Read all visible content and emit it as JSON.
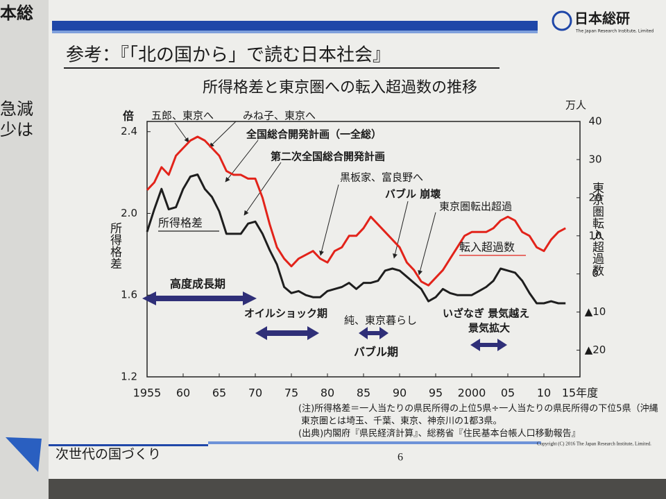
{
  "header": {
    "logo": "日本総研",
    "logo_sub": "The Japan Research Institute, Limited",
    "edge_fragments": [
      "本総",
      "急減",
      "少は"
    ]
  },
  "slide_title": "参考：『「北の国から」で読む日本社会』",
  "chart_data": {
    "type": "line",
    "title": "所得格差と東京圏への転入超過数の推移",
    "y_unit": "倍",
    "y_label": "所得格差",
    "y2_unit": "万人",
    "y2_label": "東京圏転入超過数",
    "x": [
      1955,
      1956,
      1957,
      1958,
      1959,
      1960,
      1961,
      1962,
      1963,
      1964,
      1965,
      1966,
      1967,
      1968,
      1969,
      1970,
      1971,
      1972,
      1973,
      1974,
      1975,
      1976,
      1977,
      1978,
      1979,
      1980,
      1981,
      1982,
      1983,
      1984,
      1985,
      1986,
      1987,
      1988,
      1989,
      1990,
      1991,
      1992,
      1993,
      1994,
      1995,
      1996,
      1997,
      1998,
      1999,
      2000,
      2001,
      2002,
      2003,
      2004,
      2005,
      2006,
      2007,
      2008,
      2009,
      2010,
      2011,
      2012,
      2013
    ],
    "series": [
      {
        "name": "所得格差",
        "color": "#1e1e1e",
        "axis": "y",
        "values": [
          1.91,
          2.02,
          2.12,
          2.02,
          2.03,
          2.12,
          2.18,
          2.19,
          2.12,
          2.08,
          2.01,
          1.9,
          1.9,
          1.9,
          1.95,
          1.96,
          1.9,
          1.82,
          1.75,
          1.64,
          1.61,
          1.62,
          1.6,
          1.59,
          1.59,
          1.62,
          1.63,
          1.64,
          1.66,
          1.63,
          1.66,
          1.66,
          1.67,
          1.72,
          1.73,
          1.72,
          1.69,
          1.66,
          1.63,
          1.57,
          1.59,
          1.63,
          1.61,
          1.6,
          1.6,
          1.6,
          1.62,
          1.64,
          1.67,
          1.73,
          1.72,
          1.71,
          1.67,
          1.61,
          1.56,
          1.56,
          1.57,
          1.56,
          1.56
        ]
      },
      {
        "name": "転入超過数",
        "color": "#e2231a",
        "axis": "y2",
        "values": [
          22,
          24,
          28,
          26,
          31,
          33,
          35,
          36,
          35,
          33,
          31,
          27,
          26,
          26,
          25,
          25,
          20,
          13,
          7,
          4,
          2,
          4,
          5,
          6,
          4,
          3,
          6,
          7,
          10,
          10,
          12,
          15,
          13,
          11,
          9,
          7,
          3,
          1,
          -2,
          -3,
          -1,
          1,
          4,
          7,
          10,
          11,
          11,
          11,
          12,
          14,
          15,
          14,
          11,
          10,
          7,
          6,
          9,
          11,
          12
        ]
      }
    ],
    "xlim": [
      1955,
      2015
    ],
    "xticks": [
      1955,
      {
        "value": 1960,
        "label": "60"
      },
      {
        "value": 1965,
        "label": "65"
      },
      {
        "value": 1970,
        "label": "70"
      },
      {
        "value": 1975,
        "label": "75"
      },
      {
        "value": 1980,
        "label": "80"
      },
      {
        "value": 1985,
        "label": "85"
      },
      {
        "value": 1990,
        "label": "90"
      },
      {
        "value": 1995,
        "label": "95"
      },
      2000,
      {
        "value": 2005,
        "label": "05"
      },
      {
        "value": 2010,
        "label": "10"
      },
      {
        "value": 2015,
        "label": "15年度"
      }
    ],
    "ylim": [
      1.2,
      2.45
    ],
    "yticks": [
      1.2,
      1.6,
      {
        "value": 2,
        "label": "2.0"
      },
      2.4
    ],
    "y2lim": [
      -27,
      40
    ],
    "y2ticks": [
      40,
      30,
      20,
      10,
      0,
      {
        "value": -10,
        "label": "▲10"
      },
      {
        "value": -20,
        "label": "▲20"
      }
    ],
    "annotations": [
      "五郎、東京へ",
      "みね子、東京へ",
      "全国総合開発計画（一全総）",
      "第二次全国総合開発計画",
      "黒板家、富良野へ",
      "バブル 崩壊",
      "東京圏転出超過",
      "高度成長期",
      "オイルショック期",
      "純、東京暮らし",
      "バブル期",
      "いざなぎ 景気越え",
      "景気拡大"
    ]
  },
  "notes": [
    "(注)所得格差＝一人当たりの県民所得の上位5県÷一人当たりの県民所得の下位5県（沖縄",
    "東京圏とは埼玉、千葉、東京、神奈川の1都3県。",
    "(出典)内閣府『県民経済計算』、総務省『住民基本台帳人口移動報告』"
  ],
  "footer": {
    "text": "次世代の国づくり",
    "page": "6",
    "copyright": "Copyright (C) 2016 The Japan Research Institute, Limited."
  }
}
